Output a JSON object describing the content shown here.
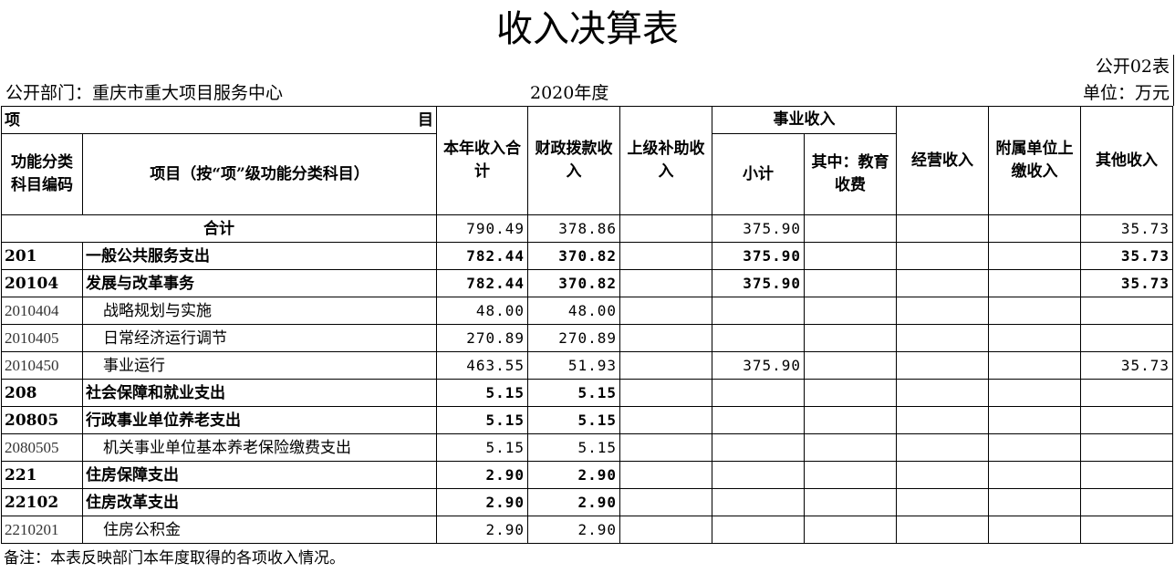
{
  "title": "收入决算表",
  "form_no": "公开02表",
  "department": "公开部门：重庆市重大项目服务中心",
  "year": "2020年度",
  "unit": "单位：万元",
  "headers": {
    "item_left": "项",
    "item_right": "目",
    "code": "功能分类科目编码",
    "name": "项目（按“项”级功能分类科目）",
    "total": "本年收入合计",
    "fiscal": "财政拨款收入",
    "superior": "上级补助收入",
    "business": "事业收入",
    "subtotal": "小计",
    "edu": "其中：教育收费",
    "operating": "经营收入",
    "affiliated": "附属单位上缴收入",
    "other": "其他收入"
  },
  "rows": [
    {
      "code": "",
      "name": "合计",
      "total": "790.49",
      "fiscal": "378.86",
      "superior": "",
      "subtotal": "375.90",
      "edu": "",
      "operating": "",
      "affiliated": "",
      "other": "35.73",
      "type": "sum"
    },
    {
      "code": "201",
      "name": "一般公共服务支出",
      "total": "782.44",
      "fiscal": "370.82",
      "superior": "",
      "subtotal": "375.90",
      "edu": "",
      "operating": "",
      "affiliated": "",
      "other": "35.73",
      "type": "bold"
    },
    {
      "code": "20104",
      "name": "发展与改革事务",
      "total": "782.44",
      "fiscal": "370.82",
      "superior": "",
      "subtotal": "375.90",
      "edu": "",
      "operating": "",
      "affiliated": "",
      "other": "35.73",
      "type": "bold"
    },
    {
      "code": "2010404",
      "name": "战略规划与实施",
      "total": "48.00",
      "fiscal": "48.00",
      "superior": "",
      "subtotal": "",
      "edu": "",
      "operating": "",
      "affiliated": "",
      "other": "",
      "type": "detail"
    },
    {
      "code": "2010405",
      "name": "日常经济运行调节",
      "total": "270.89",
      "fiscal": "270.89",
      "superior": "",
      "subtotal": "",
      "edu": "",
      "operating": "",
      "affiliated": "",
      "other": "",
      "type": "detail"
    },
    {
      "code": "2010450",
      "name": "事业运行",
      "total": "463.55",
      "fiscal": "51.93",
      "superior": "",
      "subtotal": "375.90",
      "edu": "",
      "operating": "",
      "affiliated": "",
      "other": "35.73",
      "type": "detail"
    },
    {
      "code": "208",
      "name": "社会保障和就业支出",
      "total": "5.15",
      "fiscal": "5.15",
      "superior": "",
      "subtotal": "",
      "edu": "",
      "operating": "",
      "affiliated": "",
      "other": "",
      "type": "bold"
    },
    {
      "code": "20805",
      "name": "行政事业单位养老支出",
      "total": "5.15",
      "fiscal": "5.15",
      "superior": "",
      "subtotal": "",
      "edu": "",
      "operating": "",
      "affiliated": "",
      "other": "",
      "type": "bold"
    },
    {
      "code": "2080505",
      "name": "机关事业单位基本养老保险缴费支出",
      "total": "5.15",
      "fiscal": "5.15",
      "superior": "",
      "subtotal": "",
      "edu": "",
      "operating": "",
      "affiliated": "",
      "other": "",
      "type": "detail"
    },
    {
      "code": "221",
      "name": "住房保障支出",
      "total": "2.90",
      "fiscal": "2.90",
      "superior": "",
      "subtotal": "",
      "edu": "",
      "operating": "",
      "affiliated": "",
      "other": "",
      "type": "bold"
    },
    {
      "code": "22102",
      "name": "住房改革支出",
      "total": "2.90",
      "fiscal": "2.90",
      "superior": "",
      "subtotal": "",
      "edu": "",
      "operating": "",
      "affiliated": "",
      "other": "",
      "type": "bold"
    },
    {
      "code": "2210201",
      "name": "住房公积金",
      "total": "2.90",
      "fiscal": "2.90",
      "superior": "",
      "subtotal": "",
      "edu": "",
      "operating": "",
      "affiliated": "",
      "other": "",
      "type": "detail"
    }
  ],
  "note": "备注：本表反映部门本年度取得的各项收入情况。"
}
